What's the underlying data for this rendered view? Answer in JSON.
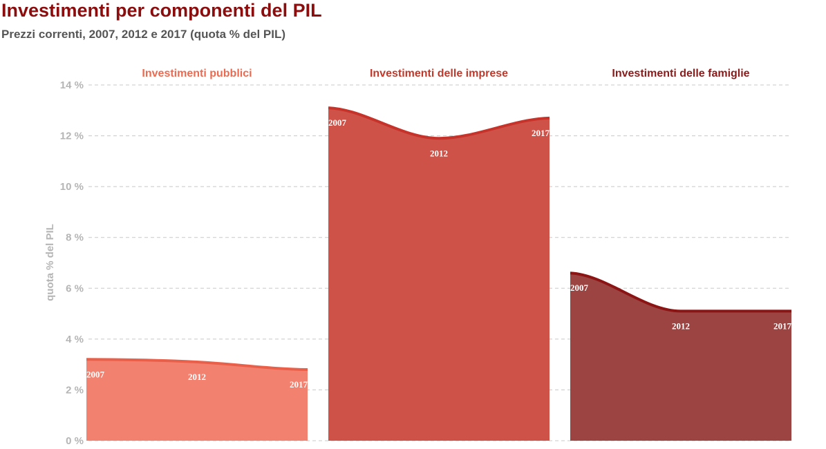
{
  "title": "Investimenti per componenti del PIL",
  "subtitle": "Prezzi correnti, 2007, 2012 e 2017 (quota % del PIL)",
  "chart_data": {
    "type": "area",
    "ylabel": "quota % del PIL",
    "ylim": [
      0,
      14
    ],
    "yticks": [
      0,
      2,
      4,
      6,
      8,
      10,
      12,
      14
    ],
    "ytick_labels": [
      "0 %",
      "2 %",
      "4 %",
      "6 %",
      "8 %",
      "10 %",
      "12 %",
      "14 %"
    ],
    "grid": true,
    "x": [
      "2007",
      "2012",
      "2017"
    ],
    "panels": [
      {
        "name": "Investimenti pubblici",
        "values": [
          3.2,
          3.1,
          2.8
        ],
        "fill": "#f3816f",
        "line": "#e8604a",
        "title_color": "#ec6a50"
      },
      {
        "name": "Investimenti delle imprese",
        "values": [
          13.1,
          11.9,
          12.7
        ],
        "fill": "#cf5249",
        "line": "#c5332b",
        "title_color": "#c0392b"
      },
      {
        "name": "Investimenti delle famiglie",
        "values": [
          6.6,
          5.1,
          5.1
        ],
        "fill": "#9b4442",
        "line": "#8b1414",
        "title_color": "#8b1a1a"
      }
    ]
  }
}
